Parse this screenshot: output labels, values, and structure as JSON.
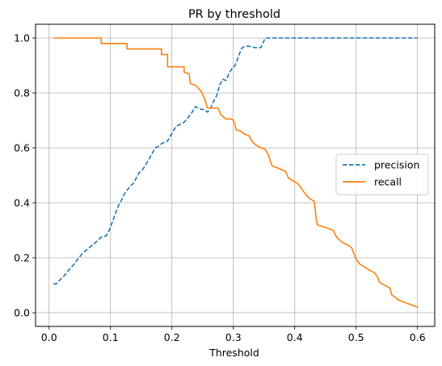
{
  "chart_data": {
    "type": "line",
    "title": "PR by threshold",
    "xlabel": "Threshold",
    "ylabel": "",
    "xlim": [
      -0.022,
      0.628
    ],
    "ylim": [
      -0.05,
      1.05
    ],
    "xticks": [
      0.0,
      0.1,
      0.2,
      0.3,
      0.4,
      0.5,
      0.6
    ],
    "xtick_labels": [
      "0.0",
      "0.1",
      "0.2",
      "0.3",
      "0.4",
      "0.5",
      "0.6"
    ],
    "yticks": [
      0.0,
      0.2,
      0.4,
      0.6,
      0.8,
      1.0
    ],
    "ytick_labels": [
      "0.0",
      "0.2",
      "0.4",
      "0.6",
      "0.8",
      "1.0"
    ],
    "grid": true,
    "legend_position": "right",
    "series": [
      {
        "name": "precision",
        "color": "#1f77b4",
        "style": "dashed",
        "x": [
          0.007,
          0.012,
          0.018,
          0.025,
          0.032,
          0.04,
          0.047,
          0.054,
          0.062,
          0.07,
          0.078,
          0.085,
          0.093,
          0.098,
          0.103,
          0.108,
          0.113,
          0.118,
          0.122,
          0.127,
          0.132,
          0.137,
          0.142,
          0.147,
          0.152,
          0.158,
          0.163,
          0.168,
          0.173,
          0.178,
          0.183,
          0.188,
          0.193,
          0.198,
          0.203,
          0.208,
          0.213,
          0.218,
          0.223,
          0.228,
          0.233,
          0.238,
          0.243,
          0.248,
          0.253,
          0.258,
          0.263,
          0.268,
          0.273,
          0.278,
          0.283,
          0.288,
          0.293,
          0.298,
          0.303,
          0.308,
          0.313,
          0.318,
          0.325,
          0.335,
          0.345,
          0.352,
          0.357,
          0.365,
          0.4,
          0.45,
          0.5,
          0.55,
          0.6
        ],
        "values": [
          0.105,
          0.105,
          0.12,
          0.135,
          0.155,
          0.175,
          0.195,
          0.215,
          0.23,
          0.245,
          0.26,
          0.275,
          0.28,
          0.3,
          0.33,
          0.36,
          0.39,
          0.41,
          0.43,
          0.445,
          0.46,
          0.47,
          0.49,
          0.51,
          0.52,
          0.54,
          0.56,
          0.58,
          0.6,
          0.605,
          0.615,
          0.62,
          0.625,
          0.645,
          0.665,
          0.68,
          0.685,
          0.69,
          0.7,
          0.715,
          0.73,
          0.75,
          0.745,
          0.74,
          0.74,
          0.73,
          0.745,
          0.77,
          0.79,
          0.83,
          0.85,
          0.845,
          0.87,
          0.89,
          0.9,
          0.93,
          0.96,
          0.97,
          0.97,
          0.965,
          0.965,
          1.0,
          1.0,
          1.0,
          1.0,
          1.0,
          1.0,
          1.0,
          1.0
        ]
      },
      {
        "name": "recall",
        "color": "#ff7f0e",
        "style": "solid",
        "x": [
          0.007,
          0.085,
          0.085,
          0.127,
          0.127,
          0.183,
          0.183,
          0.193,
          0.193,
          0.22,
          0.22,
          0.228,
          0.23,
          0.24,
          0.248,
          0.253,
          0.258,
          0.262,
          0.27,
          0.275,
          0.28,
          0.288,
          0.297,
          0.3,
          0.305,
          0.313,
          0.318,
          0.325,
          0.332,
          0.337,
          0.345,
          0.352,
          0.357,
          0.363,
          0.385,
          0.39,
          0.397,
          0.405,
          0.41,
          0.418,
          0.425,
          0.432,
          0.435,
          0.437,
          0.463,
          0.468,
          0.478,
          0.488,
          0.493,
          0.5,
          0.507,
          0.518,
          0.53,
          0.535,
          0.538,
          0.555,
          0.558,
          0.57,
          0.6
        ],
        "values": [
          1.0,
          1.0,
          0.98,
          0.98,
          0.96,
          0.96,
          0.94,
          0.94,
          0.895,
          0.895,
          0.875,
          0.87,
          0.835,
          0.825,
          0.805,
          0.78,
          0.745,
          0.745,
          0.745,
          0.745,
          0.72,
          0.705,
          0.705,
          0.7,
          0.665,
          0.66,
          0.65,
          0.645,
          0.62,
          0.61,
          0.6,
          0.595,
          0.575,
          0.535,
          0.515,
          0.49,
          0.48,
          0.47,
          0.455,
          0.43,
          0.415,
          0.405,
          0.34,
          0.32,
          0.3,
          0.275,
          0.255,
          0.245,
          0.235,
          0.195,
          0.175,
          0.16,
          0.145,
          0.13,
          0.11,
          0.09,
          0.065,
          0.045,
          0.02
        ]
      }
    ]
  }
}
